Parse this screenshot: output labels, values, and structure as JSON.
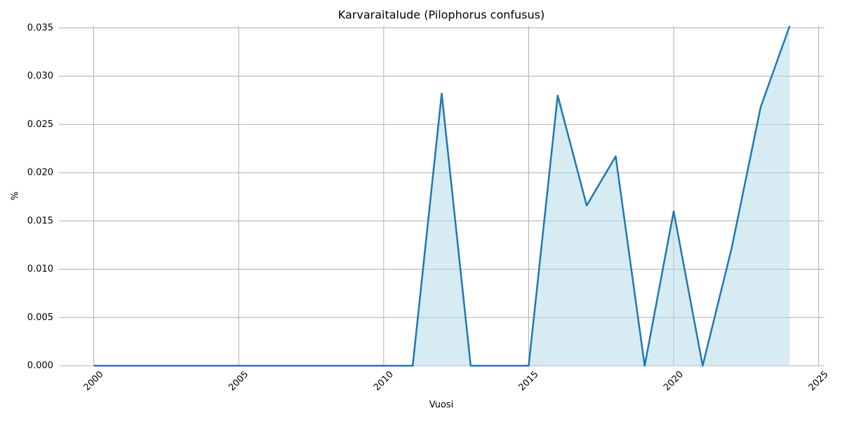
{
  "chart_data": {
    "type": "area-line",
    "title": "Karvaraitalude (Pilophorus confusus)",
    "x_label": "Vuosi",
    "y_label": "%",
    "x": [
      2000,
      2001,
      2002,
      2003,
      2004,
      2005,
      2006,
      2007,
      2008,
      2009,
      2010,
      2011,
      2012,
      2013,
      2014,
      2015,
      2016,
      2017,
      2018,
      2019,
      2020,
      2021,
      2022,
      2023,
      2024
    ],
    "values": [
      0,
      0,
      0,
      0,
      0,
      0,
      0,
      0,
      0,
      0,
      0,
      0,
      0.0282,
      0,
      0,
      0,
      0.028,
      0.0166,
      0.0217,
      0,
      0.016,
      0,
      0.0122,
      0.0268,
      0.0352
    ],
    "color": "#1f77b4",
    "fill_color": "#add8e6",
    "xlim": [
      1998.8,
      2025.2
    ],
    "xticks": [
      2000,
      2005,
      2010,
      2015,
      2020,
      2025
    ],
    "ylim": [
      0,
      0.0352
    ],
    "yticks": [
      {
        "value": 0,
        "label": "0.000"
      },
      {
        "value": 0.005,
        "label": "0.005"
      },
      {
        "value": 0.01,
        "label": "0.010"
      },
      {
        "value": 0.015,
        "label": "0.015"
      },
      {
        "value": 0.02,
        "label": "0.020"
      },
      {
        "value": 0.025,
        "label": "0.025"
      },
      {
        "value": 0.03,
        "label": "0.030"
      },
      {
        "value": 0.035,
        "label": "0.035"
      }
    ],
    "grid": true
  }
}
